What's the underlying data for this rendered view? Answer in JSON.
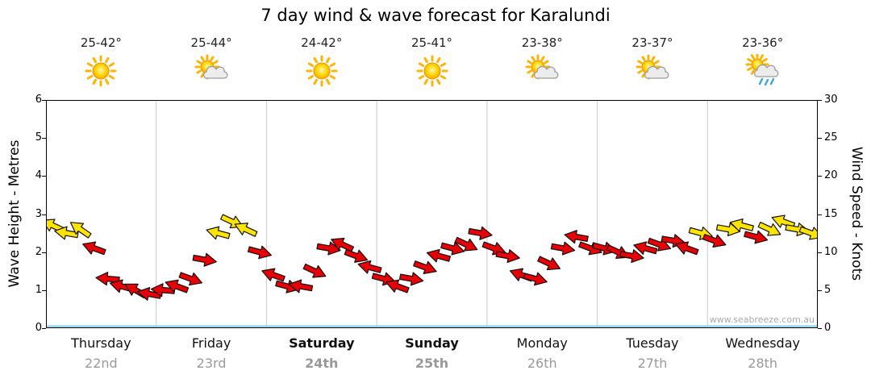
{
  "title": "7 day wind & wave forecast for Karalundi",
  "watermark": "www.seabreeze.com.au",
  "axes": {
    "left_label": "Wave Height - Metres",
    "right_label": "Wind Speed - Knots",
    "left_ticks": [
      0,
      1,
      2,
      3,
      4,
      5,
      6
    ],
    "right_ticks": [
      0,
      5,
      10,
      15,
      20,
      25,
      30
    ]
  },
  "days": [
    {
      "name": "Thursday",
      "date": "22nd",
      "temp": "25-42°",
      "icon": "sun",
      "bold": false
    },
    {
      "name": "Friday",
      "date": "23rd",
      "temp": "25-44°",
      "icon": "sun-cloud",
      "bold": false
    },
    {
      "name": "Saturday",
      "date": "24th",
      "temp": "24-42°",
      "icon": "sun",
      "bold": true
    },
    {
      "name": "Sunday",
      "date": "25th",
      "temp": "25-41°",
      "icon": "sun",
      "bold": true
    },
    {
      "name": "Monday",
      "date": "26th",
      "temp": "23-38°",
      "icon": "sun-cloud",
      "bold": false
    },
    {
      "name": "Tuesday",
      "date": "27th",
      "temp": "23-37°",
      "icon": "sun-cloud",
      "bold": false
    },
    {
      "name": "Wednesday",
      "date": "28th",
      "temp": "23-36°",
      "icon": "sun-cloud-rain",
      "bold": false
    }
  ],
  "colors": {
    "arrow_red": "#e60005",
    "arrow_yellow": "#ffe400",
    "arrow_outline": "#111111",
    "wave_line": "#8ed7ec",
    "grid": "#c9c9c9",
    "axis": "#000000"
  },
  "chart_data": {
    "type": "line",
    "title": "7 day wind & wave forecast for Karalundi",
    "x_categories": [
      "Thursday 22nd",
      "Friday 23rd",
      "Saturday 24th",
      "Sunday 25th",
      "Monday 26th",
      "Tuesday 27th",
      "Wednesday 28th"
    ],
    "points_per_day": 8,
    "interval_hours": 3,
    "left_axis": {
      "label": "Wave Height - Metres",
      "range": [
        0,
        6
      ],
      "ticks": [
        0,
        1,
        2,
        3,
        4,
        5,
        6
      ]
    },
    "right_axis": {
      "label": "Wind Speed - Knots",
      "range": [
        0,
        30
      ],
      "ticks": [
        0,
        5,
        10,
        15,
        20,
        25,
        30
      ]
    },
    "legend": "none",
    "grid": "vertical-day-separators",
    "series": [
      {
        "name": "Wind Speed",
        "unit": "knots",
        "style": "wind-arrows",
        "knots": [
          13.5,
          12.5,
          13,
          10.5,
          6.5,
          5.5,
          5,
          4.5,
          5,
          5.5,
          6.5,
          9,
          12.5,
          14,
          13,
          10,
          7,
          5.5,
          5.5,
          7.5,
          10.5,
          11,
          9.5,
          8,
          6.5,
          5.5,
          6.5,
          8,
          9.5,
          10.5,
          11,
          12.5,
          10.5,
          9.5,
          7,
          6.5,
          8.5,
          10.5,
          12,
          10.5,
          10.5,
          10,
          9.5,
          10.5,
          11,
          11.5,
          10.5,
          12.5,
          11.5,
          13,
          13.5,
          12,
          13,
          14,
          13,
          12.5
        ],
        "dir_deg": [
          205,
          190,
          215,
          200,
          185,
          195,
          210,
          190,
          185,
          200,
          20,
          10,
          195,
          25,
          205,
          15,
          200,
          15,
          190,
          25,
          10,
          205,
          20,
          195,
          15,
          200,
          10,
          20,
          195,
          15,
          25,
          10,
          20,
          10,
          200,
          15,
          25,
          10,
          190,
          20,
          15,
          25,
          10,
          195,
          20,
          10,
          200,
          15,
          20,
          10,
          195,
          15,
          25,
          200,
          10,
          20
        ],
        "color_key": [
          "y",
          "y",
          "y",
          "r",
          "r",
          "r",
          "r",
          "r",
          "r",
          "r",
          "r",
          "r",
          "y",
          "y",
          "y",
          "r",
          "r",
          "r",
          "r",
          "r",
          "r",
          "r",
          "r",
          "r",
          "r",
          "r",
          "r",
          "r",
          "r",
          "r",
          "r",
          "r",
          "r",
          "r",
          "r",
          "r",
          "r",
          "r",
          "r",
          "r",
          "r",
          "r",
          "r",
          "r",
          "r",
          "r",
          "r",
          "y",
          "r",
          "y",
          "y",
          "r",
          "y",
          "y",
          "y",
          "y"
        ]
      },
      {
        "name": "Wave Height",
        "unit": "metres",
        "style": "line",
        "values": [
          0.05,
          0.05,
          0.05,
          0.05,
          0.05,
          0.05,
          0.05,
          0.05
        ]
      }
    ]
  }
}
